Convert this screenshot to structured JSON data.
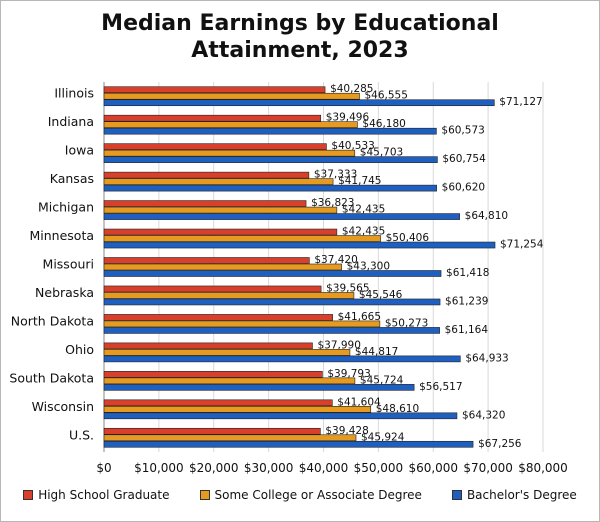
{
  "chart_data": {
    "type": "bar",
    "orientation": "horizontal",
    "title_lines": [
      "Median Earnings by Educational",
      "Attainment, 2023"
    ],
    "categories": [
      "Illinois",
      "Indiana",
      "Iowa",
      "Kansas",
      "Michigan",
      "Minnesota",
      "Missouri",
      "Nebraska",
      "North Dakota",
      "Ohio",
      "South Dakota",
      "Wisconsin",
      "U.S."
    ],
    "series": [
      {
        "name": "High School Graduate",
        "color": "#d9402b",
        "values": [
          40285,
          39496,
          40533,
          37333,
          36823,
          42435,
          37420,
          39565,
          41665,
          37990,
          39793,
          41604,
          39428
        ],
        "labels": [
          "$40,285",
          "$39,496",
          "$40,533",
          "$37,333",
          "$36,823",
          "$42,435",
          "$37,420",
          "$39,565",
          "$41,665",
          "$37,990",
          "$39,793",
          "$41,604",
          "$39,428"
        ]
      },
      {
        "name": "Some College or Associate Degree",
        "color": "#e69a1f",
        "values": [
          46555,
          46180,
          45703,
          41745,
          42435,
          50406,
          43300,
          45546,
          50273,
          44817,
          45724,
          48610,
          45924
        ],
        "labels": [
          "$46,555",
          "$46,180",
          "$45,703",
          "$41,745",
          "$42,435",
          "$50,406",
          "$43,300",
          "$45,546",
          "$50,273",
          "$44,817",
          "$45,724",
          "$48,610",
          "$45,924"
        ]
      },
      {
        "name": "Bachelor's Degree",
        "color": "#1f5fbf",
        "values": [
          71127,
          60573,
          60754,
          60620,
          64810,
          71254,
          61418,
          61239,
          61164,
          64933,
          56517,
          64320,
          67256
        ],
        "labels": [
          "$71,127",
          "$60,573",
          "$60,754",
          "$60,620",
          "$64,810",
          "$71,254",
          "$61,418",
          "$61,239",
          "$61,164",
          "$64,933",
          "$56,517",
          "$64,320",
          "$67,256"
        ]
      }
    ],
    "xlim": [
      0,
      80000
    ],
    "xticks": [
      0,
      10000,
      20000,
      30000,
      40000,
      50000,
      60000,
      70000,
      80000
    ],
    "xtick_labels": [
      "$0",
      "$10,000",
      "$20,000",
      "$30,000",
      "$40,000",
      "$50,000",
      "$60,000",
      "$70,000",
      "$80,000"
    ],
    "grid": "vertical",
    "legend_position": "bottom"
  }
}
